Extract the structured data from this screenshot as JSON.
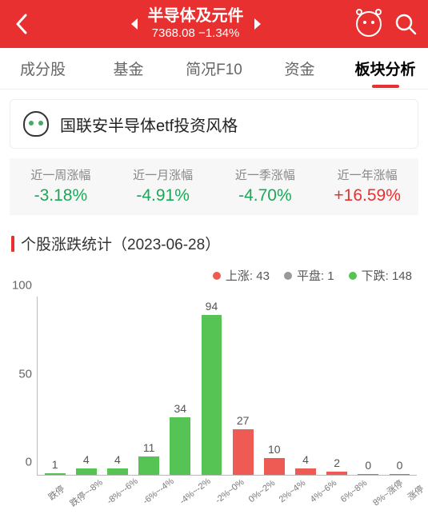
{
  "header": {
    "title": "半导体及元件",
    "value": "7368.08",
    "change": "−1.34%"
  },
  "tabs": [
    {
      "label": "成分股",
      "active": false
    },
    {
      "label": "基金",
      "active": false
    },
    {
      "label": "简况F10",
      "active": false
    },
    {
      "label": "资金",
      "active": false
    },
    {
      "label": "板块分析",
      "active": true
    }
  ],
  "invest_card": {
    "text": "国联安半导体etf投资风格"
  },
  "stats": [
    {
      "label": "近一周涨幅",
      "value": "-3.18%",
      "dir": "neg"
    },
    {
      "label": "近一月涨幅",
      "value": "-4.91%",
      "dir": "neg"
    },
    {
      "label": "近一季涨幅",
      "value": "-4.70%",
      "dir": "neg"
    },
    {
      "label": "近一年涨幅",
      "value": "+16.59%",
      "dir": "pos"
    }
  ],
  "section": {
    "title": "个股涨跌统计（2023-06-28）"
  },
  "legend": {
    "up": {
      "label": "上涨",
      "count": 43,
      "color": "#ee5b55"
    },
    "flat": {
      "label": "平盘",
      "count": 1,
      "color": "#999999"
    },
    "down": {
      "label": "下跌",
      "count": 148,
      "color": "#55c455"
    }
  },
  "chart": {
    "type": "bar",
    "y_ticks": [
      0,
      50,
      100
    ],
    "y_max": 105,
    "categories": [
      "跌停",
      "跌停~-8%",
      "-8%~-6%",
      "-6%~-4%",
      "-4%~-2%",
      "-2%~0%",
      "0%~2%",
      "2%~4%",
      "4%~6%",
      "6%~8%",
      "8%~涨停",
      "涨停"
    ],
    "values": [
      1,
      4,
      4,
      11,
      34,
      94,
      27,
      10,
      4,
      2,
      0,
      0
    ],
    "colors": [
      "gr",
      "gr",
      "gr",
      "gr",
      "gr",
      "gr",
      "r",
      "r",
      "r",
      "r",
      "r",
      "r"
    ],
    "bar_color_map": {
      "gr": "#55c455",
      "r": "#ee5b55"
    },
    "grid_color": "#bbbbbb",
    "label_fontsize": 14,
    "axis_fontsize": 15
  }
}
